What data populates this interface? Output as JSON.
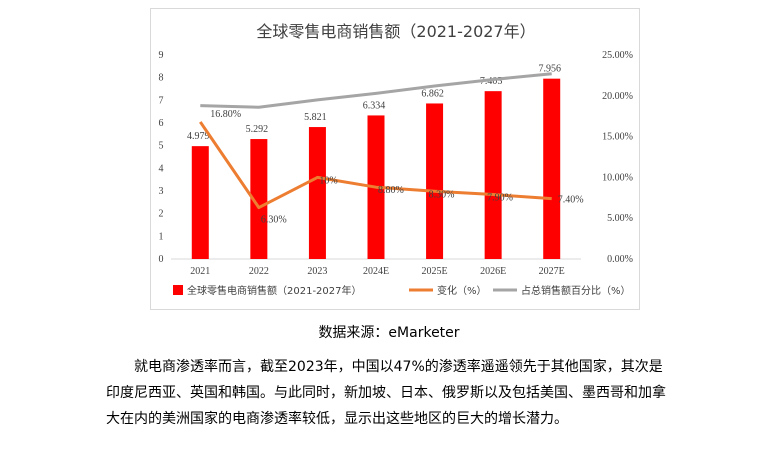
{
  "chart_data": {
    "type": "bar+line",
    "title": "全球零售电商销售额（2021-2027年）",
    "categories": [
      "2021",
      "2022",
      "2023",
      "2024E",
      "2025E",
      "2026E",
      "2027E"
    ],
    "left_axis": {
      "ylim": [
        0,
        9
      ],
      "ticks": [
        "0",
        "1",
        "2",
        "3",
        "4",
        "5",
        "6",
        "7",
        "8",
        "9"
      ]
    },
    "right_axis": {
      "ylim": [
        0,
        25
      ],
      "ticks": [
        "0.00%",
        "5.00%",
        "10.00%",
        "15.00%",
        "20.00%",
        "25.00%"
      ]
    },
    "series": [
      {
        "name": "全球零售电商销售额（2021-2027年）",
        "type": "bar",
        "axis": "left",
        "color": "#ff0000",
        "values": [
          4.979,
          5.292,
          5.821,
          6.334,
          6.862,
          7.405,
          7.956
        ],
        "labels": [
          "4.979",
          "5.292",
          "5.821",
          "6.334",
          "6.862",
          "7.405",
          "7.956"
        ]
      },
      {
        "name": "变化（%）",
        "type": "line",
        "axis": "right",
        "color": "#ed7d31",
        "values": [
          16.8,
          6.3,
          10,
          8.8,
          8.3,
          7.9,
          7.4
        ],
        "labels": [
          "16.80%",
          "6.30%",
          "10%",
          "8.80%",
          "8.30%",
          "7.90%",
          "7.40%"
        ]
      },
      {
        "name": "占总销售额百分比（%）",
        "type": "line",
        "axis": "right",
        "color": "#a5a5a5",
        "values": [
          18.8,
          18.6,
          19.5,
          20.3,
          21.2,
          22.0,
          22.7
        ]
      }
    ],
    "grid": false,
    "legend": "bottom"
  },
  "caption": "数据来源：eMarketer",
  "paragraph": "就电商渗透率而言，截至2023年，中国以47%的渗透率遥遥领先于其他国家，其次是印度尼西亚、英国和韩国。与此同时，新加坡、日本、俄罗斯以及包括美国、墨西哥和加拿大在内的美洲国家的电商渗透率较低，显示出这些地区的巨大的增长潜力。"
}
